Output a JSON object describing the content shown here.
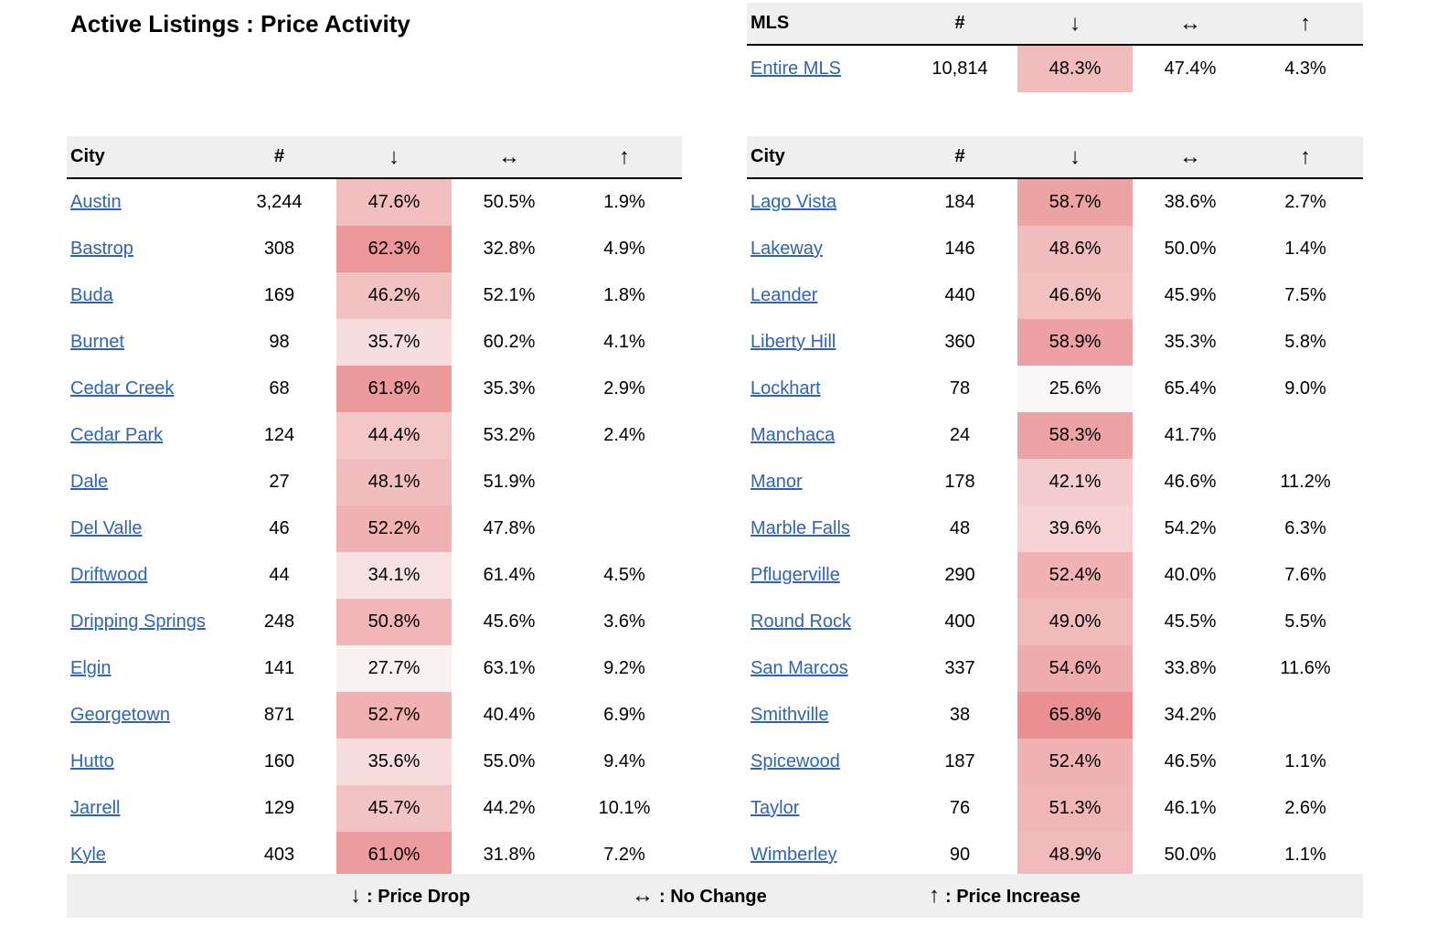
{
  "title": "Active Listings : Price Activity",
  "headers": {
    "mls": "MLS",
    "city": "City",
    "count": "#",
    "drop": "↓",
    "no_change": "↔",
    "increase": "↑"
  },
  "mls_row": {
    "name": "Entire MLS",
    "count": "10,814",
    "drop": "48.3%",
    "no_change": "47.4%",
    "increase": "4.3%"
  },
  "left_table": [
    {
      "city": "Austin",
      "count": "3,244",
      "drop": "47.6%",
      "no_change": "50.5%",
      "increase": "1.9%"
    },
    {
      "city": "Bastrop",
      "count": "308",
      "drop": "62.3%",
      "no_change": "32.8%",
      "increase": "4.9%"
    },
    {
      "city": "Buda",
      "count": "169",
      "drop": "46.2%",
      "no_change": "52.1%",
      "increase": "1.8%"
    },
    {
      "city": "Burnet",
      "count": "98",
      "drop": "35.7%",
      "no_change": "60.2%",
      "increase": "4.1%"
    },
    {
      "city": "Cedar Creek",
      "count": "68",
      "drop": "61.8%",
      "no_change": "35.3%",
      "increase": "2.9%"
    },
    {
      "city": "Cedar Park",
      "count": "124",
      "drop": "44.4%",
      "no_change": "53.2%",
      "increase": "2.4%"
    },
    {
      "city": "Dale",
      "count": "27",
      "drop": "48.1%",
      "no_change": "51.9%",
      "increase": ""
    },
    {
      "city": "Del Valle",
      "count": "46",
      "drop": "52.2%",
      "no_change": "47.8%",
      "increase": ""
    },
    {
      "city": "Driftwood",
      "count": "44",
      "drop": "34.1%",
      "no_change": "61.4%",
      "increase": "4.5%"
    },
    {
      "city": "Dripping Springs",
      "count": "248",
      "drop": "50.8%",
      "no_change": "45.6%",
      "increase": "3.6%"
    },
    {
      "city": "Elgin",
      "count": "141",
      "drop": "27.7%",
      "no_change": "63.1%",
      "increase": "9.2%"
    },
    {
      "city": "Georgetown",
      "count": "871",
      "drop": "52.7%",
      "no_change": "40.4%",
      "increase": "6.9%"
    },
    {
      "city": "Hutto",
      "count": "160",
      "drop": "35.6%",
      "no_change": "55.0%",
      "increase": "9.4%"
    },
    {
      "city": "Jarrell",
      "count": "129",
      "drop": "45.7%",
      "no_change": "44.2%",
      "increase": "10.1%"
    },
    {
      "city": "Kyle",
      "count": "403",
      "drop": "61.0%",
      "no_change": "31.8%",
      "increase": "7.2%"
    }
  ],
  "right_table": [
    {
      "city": "Lago Vista",
      "count": "184",
      "drop": "58.7%",
      "no_change": "38.6%",
      "increase": "2.7%"
    },
    {
      "city": "Lakeway",
      "count": "146",
      "drop": "48.6%",
      "no_change": "50.0%",
      "increase": "1.4%"
    },
    {
      "city": "Leander",
      "count": "440",
      "drop": "46.6%",
      "no_change": "45.9%",
      "increase": "7.5%"
    },
    {
      "city": "Liberty Hill",
      "count": "360",
      "drop": "58.9%",
      "no_change": "35.3%",
      "increase": "5.8%"
    },
    {
      "city": "Lockhart",
      "count": "78",
      "drop": "25.6%",
      "no_change": "65.4%",
      "increase": "9.0%"
    },
    {
      "city": "Manchaca",
      "count": "24",
      "drop": "58.3%",
      "no_change": "41.7%",
      "increase": ""
    },
    {
      "city": "Manor",
      "count": "178",
      "drop": "42.1%",
      "no_change": "46.6%",
      "increase": "11.2%"
    },
    {
      "city": "Marble Falls",
      "count": "48",
      "drop": "39.6%",
      "no_change": "54.2%",
      "increase": "6.3%"
    },
    {
      "city": "Pflugerville",
      "count": "290",
      "drop": "52.4%",
      "no_change": "40.0%",
      "increase": "7.6%"
    },
    {
      "city": "Round Rock",
      "count": "400",
      "drop": "49.0%",
      "no_change": "45.5%",
      "increase": "5.5%"
    },
    {
      "city": "San Marcos",
      "count": "337",
      "drop": "54.6%",
      "no_change": "33.8%",
      "increase": "11.6%"
    },
    {
      "city": "Smithville",
      "count": "38",
      "drop": "65.8%",
      "no_change": "34.2%",
      "increase": ""
    },
    {
      "city": "Spicewood",
      "count": "187",
      "drop": "52.4%",
      "no_change": "46.5%",
      "increase": "1.1%"
    },
    {
      "city": "Taylor",
      "count": "76",
      "drop": "51.3%",
      "no_change": "46.1%",
      "increase": "2.6%"
    },
    {
      "city": "Wimberley",
      "count": "90",
      "drop": "48.9%",
      "no_change": "50.0%",
      "increase": "1.1%"
    }
  ],
  "legend": {
    "drop_symbol": "↓",
    "drop_label": ": Price Drop",
    "no_change_symbol": "↔",
    "no_change_label": ": No Change",
    "increase_symbol": "↑",
    "increase_label": ": Price Increase"
  },
  "colors": {
    "link": "#2f64b0",
    "header_bg": "#efefef",
    "heat_low": "#fbf8f8",
    "heat_high": "#ea8f92"
  }
}
